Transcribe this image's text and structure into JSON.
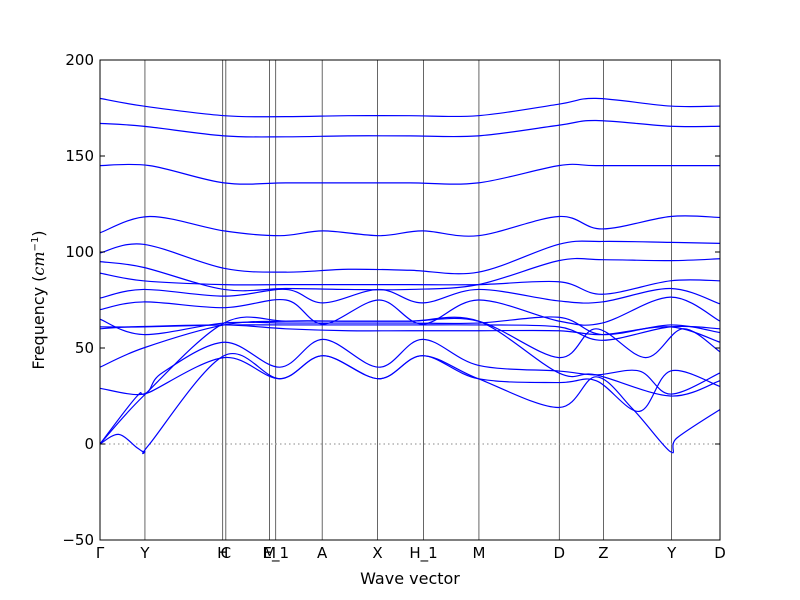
{
  "chart_data": {
    "type": "line",
    "title": "",
    "xlabel": "Wave vector",
    "ylabel_text": "Frequency (",
    "ylabel_unit": "cm",
    "ylabel_sup": "−1",
    "ylabel_close": ")",
    "ylim": [
      -50,
      200
    ],
    "yticks": [
      -50,
      0,
      50,
      100,
      150,
      200
    ],
    "ytick_labels": [
      "−50",
      "0",
      "50",
      "100",
      "150",
      "200"
    ],
    "xlim": [
      0,
      1
    ],
    "high_symmetry_points": [
      {
        "label": "Γ",
        "x": 0.0
      },
      {
        "label": "Y",
        "x": 0.0725
      },
      {
        "label": "H",
        "x": 0.198
      },
      {
        "label": "C",
        "x": 0.203
      },
      {
        "label": "M",
        "x": 0.2735
      },
      {
        "label": "E_1",
        "x": 0.2835
      },
      {
        "label": "A",
        "x": 0.3583
      },
      {
        "label": "X",
        "x": 0.4476
      },
      {
        "label": "H_1",
        "x": 0.5218
      },
      {
        "label": "M",
        "x": 0.6112
      },
      {
        "label": "D",
        "x": 0.7407
      },
      {
        "label": "Z",
        "x": 0.8119
      },
      {
        "label": "Y",
        "x": 0.9221
      },
      {
        "label": "D",
        "x": 1.0
      }
    ],
    "zero_line": {
      "y": 0,
      "style": "dotted",
      "color": "#888888"
    },
    "series_color": "#0000ff",
    "bands": [
      {
        "x": [
          0,
          0.07,
          0.2,
          0.3,
          0.4,
          0.5,
          0.61,
          0.74,
          0.8,
          0.92,
          1.0
        ],
        "y": [
          180,
          176,
          171,
          170.5,
          171,
          171,
          171,
          177,
          180,
          176,
          176
        ]
      },
      {
        "x": [
          0,
          0.07,
          0.2,
          0.3,
          0.4,
          0.5,
          0.61,
          0.74,
          0.8,
          0.92,
          1.0
        ],
        "y": [
          167,
          165.5,
          160.5,
          160,
          160.5,
          160.5,
          160.5,
          166,
          168.5,
          165.5,
          165.5
        ]
      },
      {
        "x": [
          0,
          0.08,
          0.2,
          0.3,
          0.4,
          0.5,
          0.61,
          0.74,
          0.8,
          0.92,
          1.0
        ],
        "y": [
          145,
          145,
          136,
          136,
          136,
          136,
          136,
          145,
          145,
          145,
          145
        ]
      },
      {
        "x": [
          0,
          0.08,
          0.2,
          0.29,
          0.36,
          0.45,
          0.52,
          0.61,
          0.74,
          0.81,
          0.92,
          1.0
        ],
        "y": [
          110,
          118.5,
          111,
          108.5,
          111,
          108.5,
          111,
          108.5,
          118.5,
          112,
          118.5,
          118
        ]
      },
      {
        "x": [
          0,
          0.07,
          0.2,
          0.3,
          0.4,
          0.5,
          0.61,
          0.74,
          0.81,
          0.92,
          1.0
        ],
        "y": [
          99.5,
          104,
          91.5,
          89.5,
          91,
          90.5,
          89.5,
          104,
          105.5,
          105,
          104.5
        ]
      },
      {
        "x": [
          0,
          0.07,
          0.2,
          0.3,
          0.4,
          0.5,
          0.61,
          0.74,
          0.81,
          0.92,
          1.0
        ],
        "y": [
          95,
          92,
          80.5,
          81,
          80.5,
          80.5,
          83,
          95.5,
          96,
          95.5,
          96.5
        ]
      },
      {
        "x": [
          0,
          0.07,
          0.2,
          0.3,
          0.4,
          0.5,
          0.61,
          0.74,
          0.81,
          0.92,
          1.0
        ],
        "y": [
          89,
          85,
          83,
          83,
          83,
          83,
          83,
          84.5,
          78,
          85,
          85
        ]
      },
      {
        "x": [
          0,
          0.07,
          0.2,
          0.3,
          0.36,
          0.45,
          0.52,
          0.61,
          0.74,
          0.81,
          0.92,
          1.0
        ],
        "y": [
          76,
          80.5,
          77,
          80.5,
          73.5,
          80.5,
          73.5,
          80.5,
          74.5,
          74,
          81,
          73
        ]
      },
      {
        "x": [
          0,
          0.07,
          0.2,
          0.3,
          0.36,
          0.45,
          0.52,
          0.61,
          0.74,
          0.81,
          0.92,
          1.0
        ],
        "y": [
          70,
          74,
          71,
          75,
          62.5,
          75,
          62.5,
          75,
          64,
          63,
          76.5,
          64
        ]
      },
      {
        "x": [
          0,
          0.07,
          0.2,
          0.3,
          0.4,
          0.5,
          0.61,
          0.74,
          0.81,
          0.92,
          1.0
        ],
        "y": [
          65,
          57,
          63,
          63,
          63,
          63,
          63,
          66,
          57,
          62,
          58
        ]
      },
      {
        "x": [
          0,
          0.07,
          0.2,
          0.3,
          0.4,
          0.5,
          0.61,
          0.74,
          0.81,
          0.92,
          1.0
        ],
        "y": [
          61,
          61,
          62,
          62,
          62,
          62,
          62,
          61,
          54,
          61,
          60
        ]
      },
      {
        "x": [
          0,
          0.05,
          0.2,
          0.3,
          0.4,
          0.5,
          0.61,
          0.74,
          0.81,
          0.92,
          1.0
        ],
        "y": [
          60,
          61,
          62,
          60,
          59,
          59,
          59,
          59,
          57,
          61,
          53
        ]
      },
      {
        "x": [
          0,
          0.07,
          0.2,
          0.3,
          0.4,
          0.5,
          0.61,
          0.74,
          0.8,
          0.88,
          0.94,
          1.0
        ],
        "y": [
          40,
          50,
          62,
          64,
          64,
          64,
          64,
          45,
          60,
          45,
          60,
          48
        ]
      },
      {
        "x": [
          0,
          0.07,
          0.1,
          0.2,
          0.29,
          0.36,
          0.45,
          0.52,
          0.61,
          0.74,
          0.8,
          0.87,
          0.92,
          1.0
        ],
        "y": [
          29,
          26,
          37,
          53,
          40,
          54.5,
          40,
          54.5,
          41,
          38,
          36,
          38,
          26,
          37
        ]
      },
      {
        "x": [
          0,
          0.06,
          0.08,
          0.2,
          0.29,
          0.36,
          0.45,
          0.52,
          0.61,
          0.74,
          0.8,
          0.87,
          0.92,
          1.0
        ],
        "y": [
          0,
          25,
          27,
          45,
          34,
          46,
          34,
          46,
          34,
          32,
          33,
          17,
          38,
          30
        ]
      },
      {
        "x": [
          0,
          0.03,
          0.06,
          0.072,
          0.08,
          0.2,
          0.29,
          0.36,
          0.45,
          0.52,
          0.61,
          0.74,
          0.8,
          0.86,
          0.92,
          0.93,
          1.0
        ],
        "y": [
          0,
          5,
          -2,
          -4,
          0,
          46,
          34,
          46,
          34,
          46,
          34,
          19,
          35,
          18,
          -4,
          3,
          18
        ]
      },
      {
        "x": [
          0,
          0.07,
          0.2,
          0.3,
          0.4,
          0.5,
          0.61,
          0.74,
          0.8,
          0.92,
          1.0
        ],
        "y": [
          0,
          25,
          63,
          64,
          64,
          64,
          64,
          37,
          36,
          25,
          33
        ]
      }
    ]
  }
}
